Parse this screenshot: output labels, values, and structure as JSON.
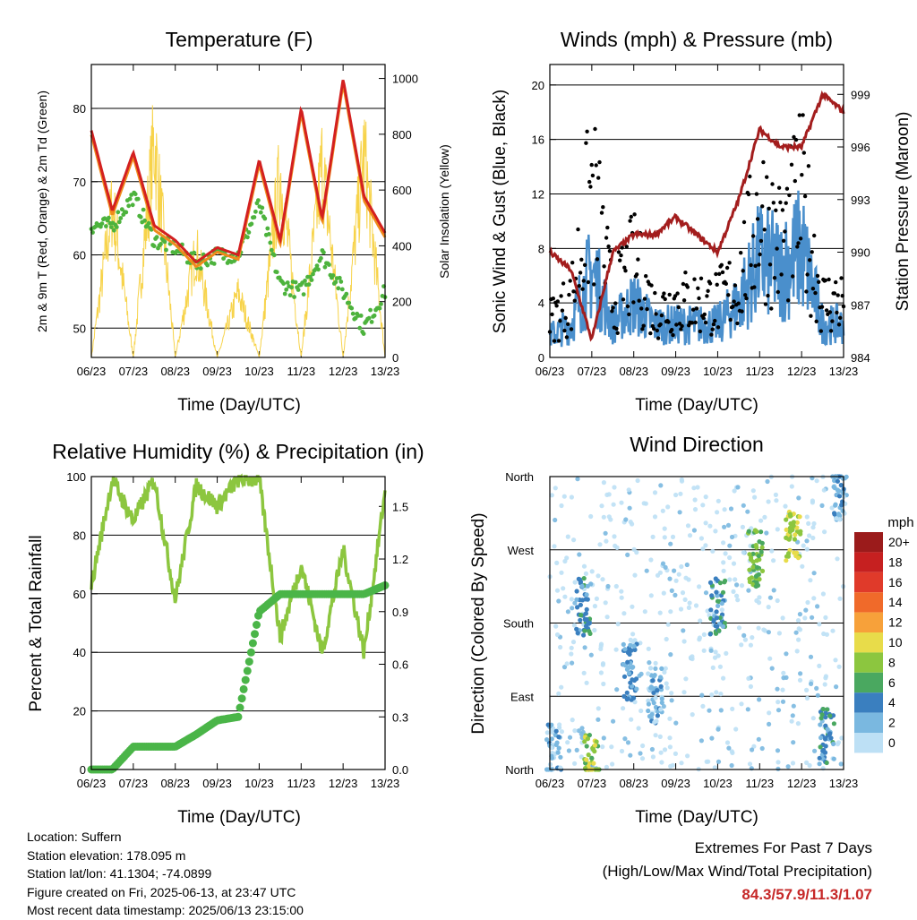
{
  "colors": {
    "temp_2m": "#d32020",
    "temp_9m": "#f08a1c",
    "dewpoint": "#4db33d",
    "solar": "#f7d34a",
    "wind": "#4a8fcc",
    "gust": "#000000",
    "pressure": "#a31d1d",
    "rh": "#8cc63f",
    "rain": "#4ab548",
    "extremes_text": "#c62828"
  },
  "x_ticks": [
    "06/23",
    "07/23",
    "08/23",
    "09/23",
    "10/23",
    "11/23",
    "12/23",
    "13/23"
  ],
  "temperature": {
    "title": "Temperature (F)",
    "xlabel": "Time (Day/UTC)",
    "ylabel_left": "2m & 9m T (Red, Orange) & 2m Td (Green)",
    "ylabel_right": "Solar Insolation (Yellow)"
  },
  "winds": {
    "title": "Winds (mph) & Pressure (mb)",
    "xlabel": "Time (Day/UTC)",
    "ylabel_left": "Sonic Wind & Gust (Blue, Black)",
    "ylabel_right": "Station Pressure (Maroon)"
  },
  "humidity": {
    "title": "Relative Humidity (%) & Precipitation (in)",
    "xlabel": "Time (Day/UTC)",
    "ylabel_left": "Percent & Total Rainfall"
  },
  "direction": {
    "title": "Wind Direction",
    "xlabel": "Time (Day/UTC)",
    "ylabel_left": "Direction (Colored By Speed)",
    "colorbar_title": "mph",
    "colorbar_labels": [
      "20+",
      "18",
      "16",
      "14",
      "12",
      "10",
      "8",
      "6",
      "4",
      "2",
      "0"
    ],
    "colorbar_colors": [
      "#9b1b1b",
      "#c62020",
      "#e03a2a",
      "#f06a2a",
      "#f7a13a",
      "#e8dc4a",
      "#8cc63f",
      "#4aa860",
      "#3a7fbf",
      "#7ab8e0",
      "#bde0f5"
    ]
  },
  "info": {
    "location": "Location: Suffern",
    "elevation": "Station elevation: 178.095 m",
    "latlon": "Station lat/lon: 41.1304; -74.0899",
    "created": "Figure created on Fri, 2025-06-13, at 23:47 UTC",
    "recent": "Most recent data timestamp: 2025/06/13 23:15:00"
  },
  "extremes": {
    "title": "Extremes For Past 7 Days",
    "subtitle": "(High/Low/Max Wind/Total Precipitation)",
    "values": "84.3/57.9/11.3/1.07"
  },
  "chart_data": [
    {
      "type": "line",
      "x": [
        6,
        6.5,
        7,
        7.5,
        8,
        8.5,
        9,
        9.5,
        10,
        10.5,
        11,
        11.5,
        12,
        12.5,
        13
      ],
      "ylim": [
        46,
        86
      ],
      "y_ticks": [
        50,
        60,
        70,
        80
      ],
      "y2lim": [
        0,
        1050
      ],
      "y2_ticks": [
        0,
        200,
        400,
        600,
        800,
        1000
      ],
      "series": [
        {
          "role": "temp_2m",
          "values": [
            77,
            66,
            74,
            64,
            62,
            59,
            61,
            60,
            73,
            62,
            80,
            65,
            84,
            68,
            63
          ]
        },
        {
          "role": "dewpoint",
          "values": [
            64,
            64,
            68,
            62,
            61,
            59,
            60,
            60,
            67,
            56,
            55,
            60,
            55,
            50,
            55
          ]
        },
        {
          "role": "solar",
          "values": [
            0,
            700,
            0,
            1000,
            0,
            500,
            0,
            300,
            0,
            850,
            0,
            900,
            0,
            950,
            0
          ]
        }
      ]
    },
    {
      "type": "scatter",
      "x": [
        6,
        6.5,
        7,
        7.5,
        8,
        8.5,
        9,
        9.5,
        10,
        10.5,
        11,
        11.5,
        12,
        12.5,
        13
      ],
      "ylim": [
        0,
        21.5
      ],
      "y_ticks": [
        0,
        4,
        8,
        12,
        16,
        20
      ],
      "y2lim": [
        984,
        1000.7
      ],
      "y2_ticks": [
        984,
        987,
        990,
        993,
        996,
        999
      ],
      "series": [
        {
          "role": "wind",
          "values": [
            2,
            3,
            8,
            3,
            5,
            3,
            3,
            3,
            3,
            5,
            9,
            8,
            10,
            3,
            3
          ]
        },
        {
          "role": "gust",
          "values": [
            4,
            6,
            18,
            6,
            10,
            5,
            6,
            6,
            6,
            8,
            16,
            12,
            17,
            6,
            6
          ]
        },
        {
          "role": "pressure",
          "values": [
            990,
            989,
            985,
            990,
            991,
            991,
            992,
            991,
            990,
            993,
            997,
            996,
            996,
            999,
            998
          ]
        }
      ]
    },
    {
      "type": "line",
      "x": [
        6,
        6.5,
        7,
        7.5,
        8,
        8.5,
        9,
        9.5,
        10,
        10.5,
        11,
        11.5,
        12,
        12.5,
        13
      ],
      "ylim": [
        0,
        100
      ],
      "y_ticks": [
        0,
        20,
        40,
        60,
        80,
        100
      ],
      "y2lim": [
        0,
        1.67
      ],
      "y2_ticks": [
        "0.0",
        "0.3",
        "0.6",
        "0.9",
        "1.2",
        "1.5"
      ],
      "series": [
        {
          "role": "rh",
          "values": [
            63,
            99,
            85,
            99,
            58,
            97,
            90,
            99,
            99,
            45,
            70,
            40,
            75,
            40,
            95
          ]
        },
        {
          "role": "rain",
          "values": [
            0,
            0,
            0.13,
            0.13,
            0.13,
            0.2,
            0.28,
            0.3,
            0.9,
            1.0,
            1.0,
            1.0,
            1.0,
            1.0,
            1.05
          ]
        }
      ]
    },
    {
      "type": "scatter",
      "x_ticks_days": [
        6,
        7,
        8,
        9,
        10,
        11,
        12,
        13
      ],
      "y_ticks": [
        "North",
        "East",
        "South",
        "West",
        "North"
      ],
      "y_values_deg": [
        0,
        90,
        180,
        270,
        360
      ],
      "clusters": [
        {
          "x": 6.1,
          "dir": 20,
          "speed": 2
        },
        {
          "x": 6.8,
          "dir": 200,
          "speed": 4
        },
        {
          "x": 7.0,
          "dir": 10,
          "speed": 8
        },
        {
          "x": 7.9,
          "dir": 120,
          "speed": 3
        },
        {
          "x": 8.5,
          "dir": 90,
          "speed": 2
        },
        {
          "x": 10.0,
          "dir": 200,
          "speed": 4
        },
        {
          "x": 10.9,
          "dir": 260,
          "speed": 7
        },
        {
          "x": 11.8,
          "dir": 290,
          "speed": 9
        },
        {
          "x": 12.6,
          "dir": 40,
          "speed": 4
        },
        {
          "x": 12.9,
          "dir": 340,
          "speed": 2
        }
      ]
    }
  ]
}
